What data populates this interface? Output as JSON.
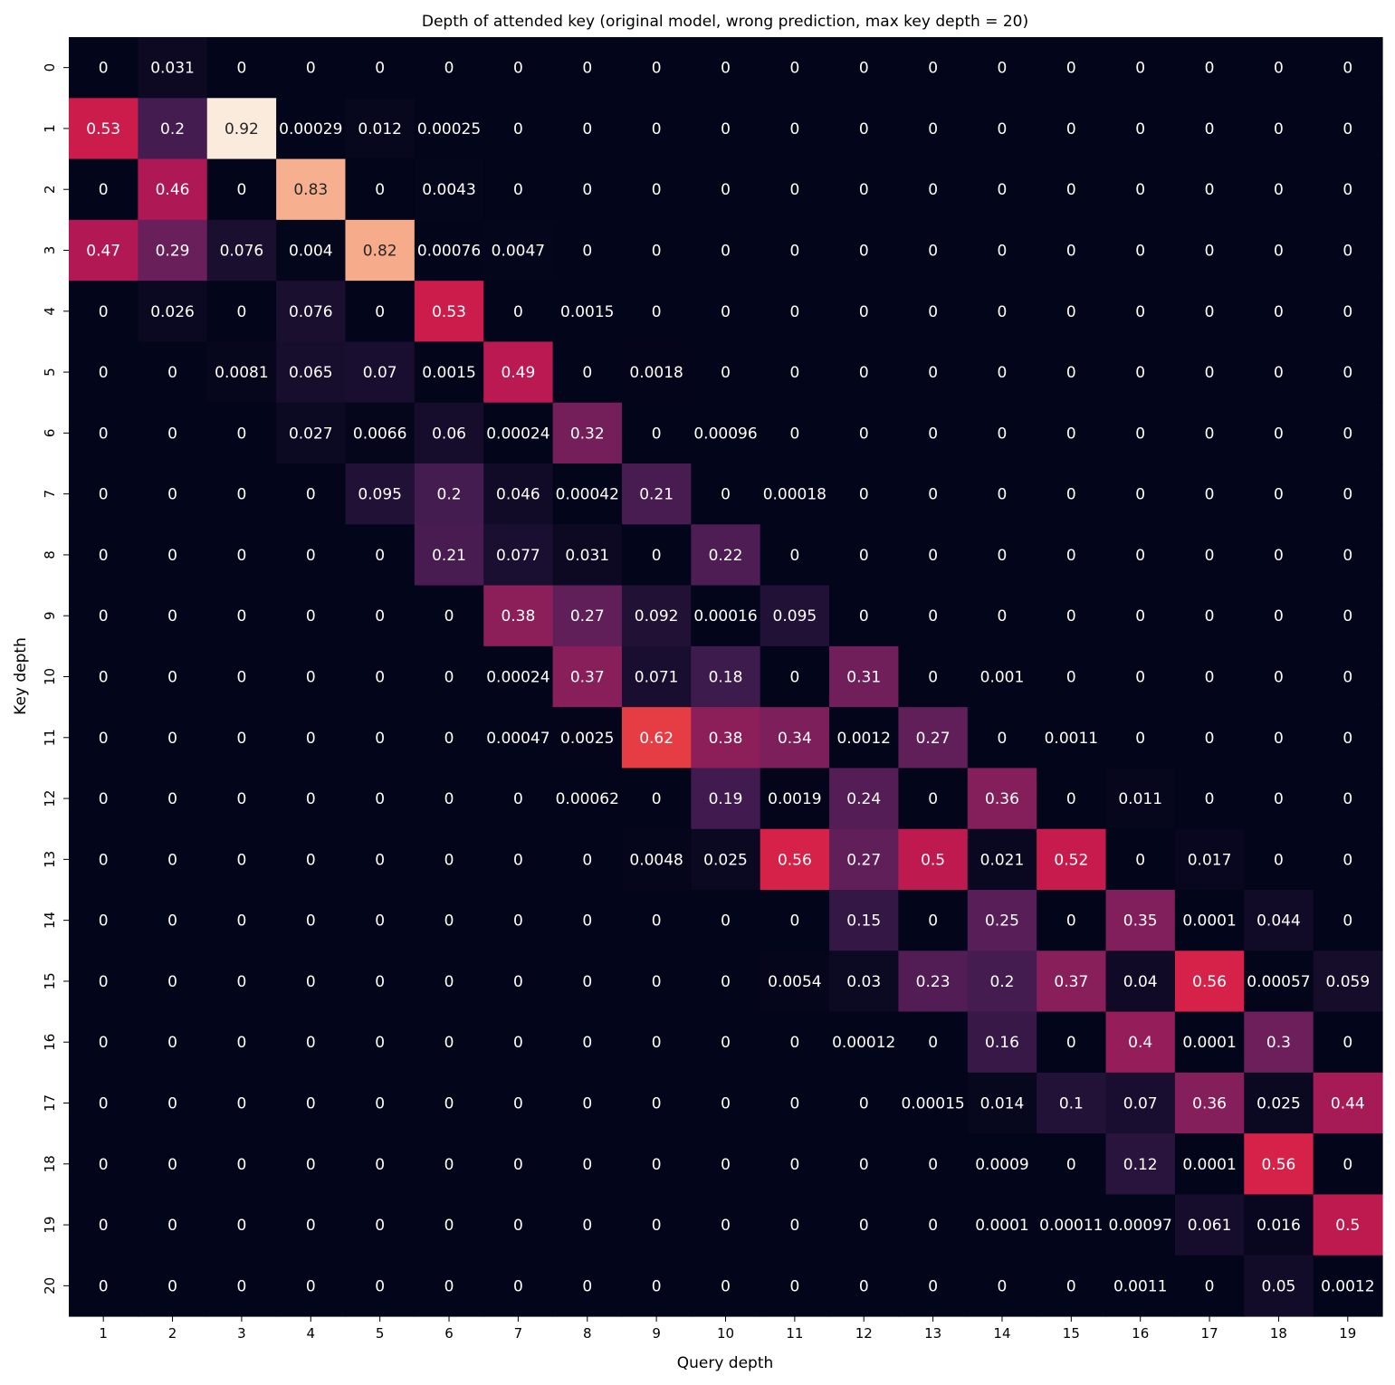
{
  "chart_data": {
    "type": "heatmap",
    "title": "Depth of attended key (original model, wrong prediction, max key depth = 20)",
    "xlabel": "Query depth",
    "ylabel": "Key depth",
    "x_categories": [
      "1",
      "2",
      "3",
      "4",
      "5",
      "6",
      "7",
      "8",
      "9",
      "10",
      "11",
      "12",
      "13",
      "14",
      "15",
      "16",
      "17",
      "18",
      "19"
    ],
    "y_categories": [
      "0",
      "1",
      "2",
      "3",
      "4",
      "5",
      "6",
      "7",
      "8",
      "9",
      "10",
      "11",
      "12",
      "13",
      "14",
      "15",
      "16",
      "17",
      "18",
      "19",
      "20"
    ],
    "color_scale": "rocket",
    "color_range": [
      0,
      0.92
    ],
    "colorbar": false,
    "values": [
      [
        "0",
        "0.031",
        "0",
        "0",
        "0",
        "0",
        "0",
        "0",
        "0",
        "0",
        "0",
        "0",
        "0",
        "0",
        "0",
        "0",
        "0",
        "0",
        "0"
      ],
      [
        "0.53",
        "0.2",
        "0.92",
        "0.00029",
        "0.012",
        "0.00025",
        "0",
        "0",
        "0",
        "0",
        "0",
        "0",
        "0",
        "0",
        "0",
        "0",
        "0",
        "0",
        "0"
      ],
      [
        "0",
        "0.46",
        "0",
        "0.83",
        "0",
        "0.0043",
        "0",
        "0",
        "0",
        "0",
        "0",
        "0",
        "0",
        "0",
        "0",
        "0",
        "0",
        "0",
        "0"
      ],
      [
        "0.47",
        "0.29",
        "0.076",
        "0.004",
        "0.82",
        "0.00076",
        "0.0047",
        "0",
        "0",
        "0",
        "0",
        "0",
        "0",
        "0",
        "0",
        "0",
        "0",
        "0",
        "0"
      ],
      [
        "0",
        "0.026",
        "0",
        "0.076",
        "0",
        "0.53",
        "0",
        "0.0015",
        "0",
        "0",
        "0",
        "0",
        "0",
        "0",
        "0",
        "0",
        "0",
        "0",
        "0"
      ],
      [
        "0",
        "0",
        "0.0081",
        "0.065",
        "0.07",
        "0.0015",
        "0.49",
        "0",
        "0.0018",
        "0",
        "0",
        "0",
        "0",
        "0",
        "0",
        "0",
        "0",
        "0",
        "0"
      ],
      [
        "0",
        "0",
        "0",
        "0.027",
        "0.0066",
        "0.06",
        "0.00024",
        "0.32",
        "0",
        "0.00096",
        "0",
        "0",
        "0",
        "0",
        "0",
        "0",
        "0",
        "0",
        "0"
      ],
      [
        "0",
        "0",
        "0",
        "0",
        "0.095",
        "0.2",
        "0.046",
        "0.00042",
        "0.21",
        "0",
        "0.00018",
        "0",
        "0",
        "0",
        "0",
        "0",
        "0",
        "0",
        "0"
      ],
      [
        "0",
        "0",
        "0",
        "0",
        "0",
        "0.21",
        "0.077",
        "0.031",
        "0",
        "0.22",
        "0",
        "0",
        "0",
        "0",
        "0",
        "0",
        "0",
        "0",
        "0"
      ],
      [
        "0",
        "0",
        "0",
        "0",
        "0",
        "0",
        "0.38",
        "0.27",
        "0.092",
        "0.00016",
        "0.095",
        "0",
        "0",
        "0",
        "0",
        "0",
        "0",
        "0",
        "0"
      ],
      [
        "0",
        "0",
        "0",
        "0",
        "0",
        "0",
        "0.00024",
        "0.37",
        "0.071",
        "0.18",
        "0",
        "0.31",
        "0",
        "0.001",
        "0",
        "0",
        "0",
        "0",
        "0"
      ],
      [
        "0",
        "0",
        "0",
        "0",
        "0",
        "0",
        "0.00047",
        "0.0025",
        "0.62",
        "0.38",
        "0.34",
        "0.0012",
        "0.27",
        "0",
        "0.0011",
        "0",
        "0",
        "0",
        "0"
      ],
      [
        "0",
        "0",
        "0",
        "0",
        "0",
        "0",
        "0",
        "0.00062",
        "0",
        "0.19",
        "0.0019",
        "0.24",
        "0",
        "0.36",
        "0",
        "0.011",
        "0",
        "0",
        "0"
      ],
      [
        "0",
        "0",
        "0",
        "0",
        "0",
        "0",
        "0",
        "0",
        "0.0048",
        "0.025",
        "0.56",
        "0.27",
        "0.5",
        "0.021",
        "0.52",
        "0",
        "0.017",
        "0",
        "0"
      ],
      [
        "0",
        "0",
        "0",
        "0",
        "0",
        "0",
        "0",
        "0",
        "0",
        "0",
        "0",
        "0.15",
        "0",
        "0.25",
        "0",
        "0.35",
        "0.0001",
        "0.044",
        "0"
      ],
      [
        "0",
        "0",
        "0",
        "0",
        "0",
        "0",
        "0",
        "0",
        "0",
        "0",
        "0.0054",
        "0.03",
        "0.23",
        "0.2",
        "0.37",
        "0.04",
        "0.56",
        "0.00057",
        "0.059"
      ],
      [
        "0",
        "0",
        "0",
        "0",
        "0",
        "0",
        "0",
        "0",
        "0",
        "0",
        "0",
        "0.00012",
        "0",
        "0.16",
        "0",
        "0.4",
        "0.0001",
        "0.3",
        "0"
      ],
      [
        "0",
        "0",
        "0",
        "0",
        "0",
        "0",
        "0",
        "0",
        "0",
        "0",
        "0",
        "0",
        "0.00015",
        "0.014",
        "0.1",
        "0.07",
        "0.36",
        "0.025",
        "0.44"
      ],
      [
        "0",
        "0",
        "0",
        "0",
        "0",
        "0",
        "0",
        "0",
        "0",
        "0",
        "0",
        "0",
        "0",
        "0.0009",
        "0",
        "0.12",
        "0.0001",
        "0.56",
        "0"
      ],
      [
        "0",
        "0",
        "0",
        "0",
        "0",
        "0",
        "0",
        "0",
        "0",
        "0",
        "0",
        "0",
        "0",
        "0.0001",
        "0.00011",
        "0.00097",
        "0.061",
        "0.016",
        "0.5"
      ],
      [
        "0",
        "0",
        "0",
        "0",
        "0",
        "0",
        "0",
        "0",
        "0",
        "0",
        "0",
        "0",
        "0",
        "0",
        "0",
        "0.0011",
        "0",
        "0.05",
        "0.0012"
      ]
    ]
  }
}
